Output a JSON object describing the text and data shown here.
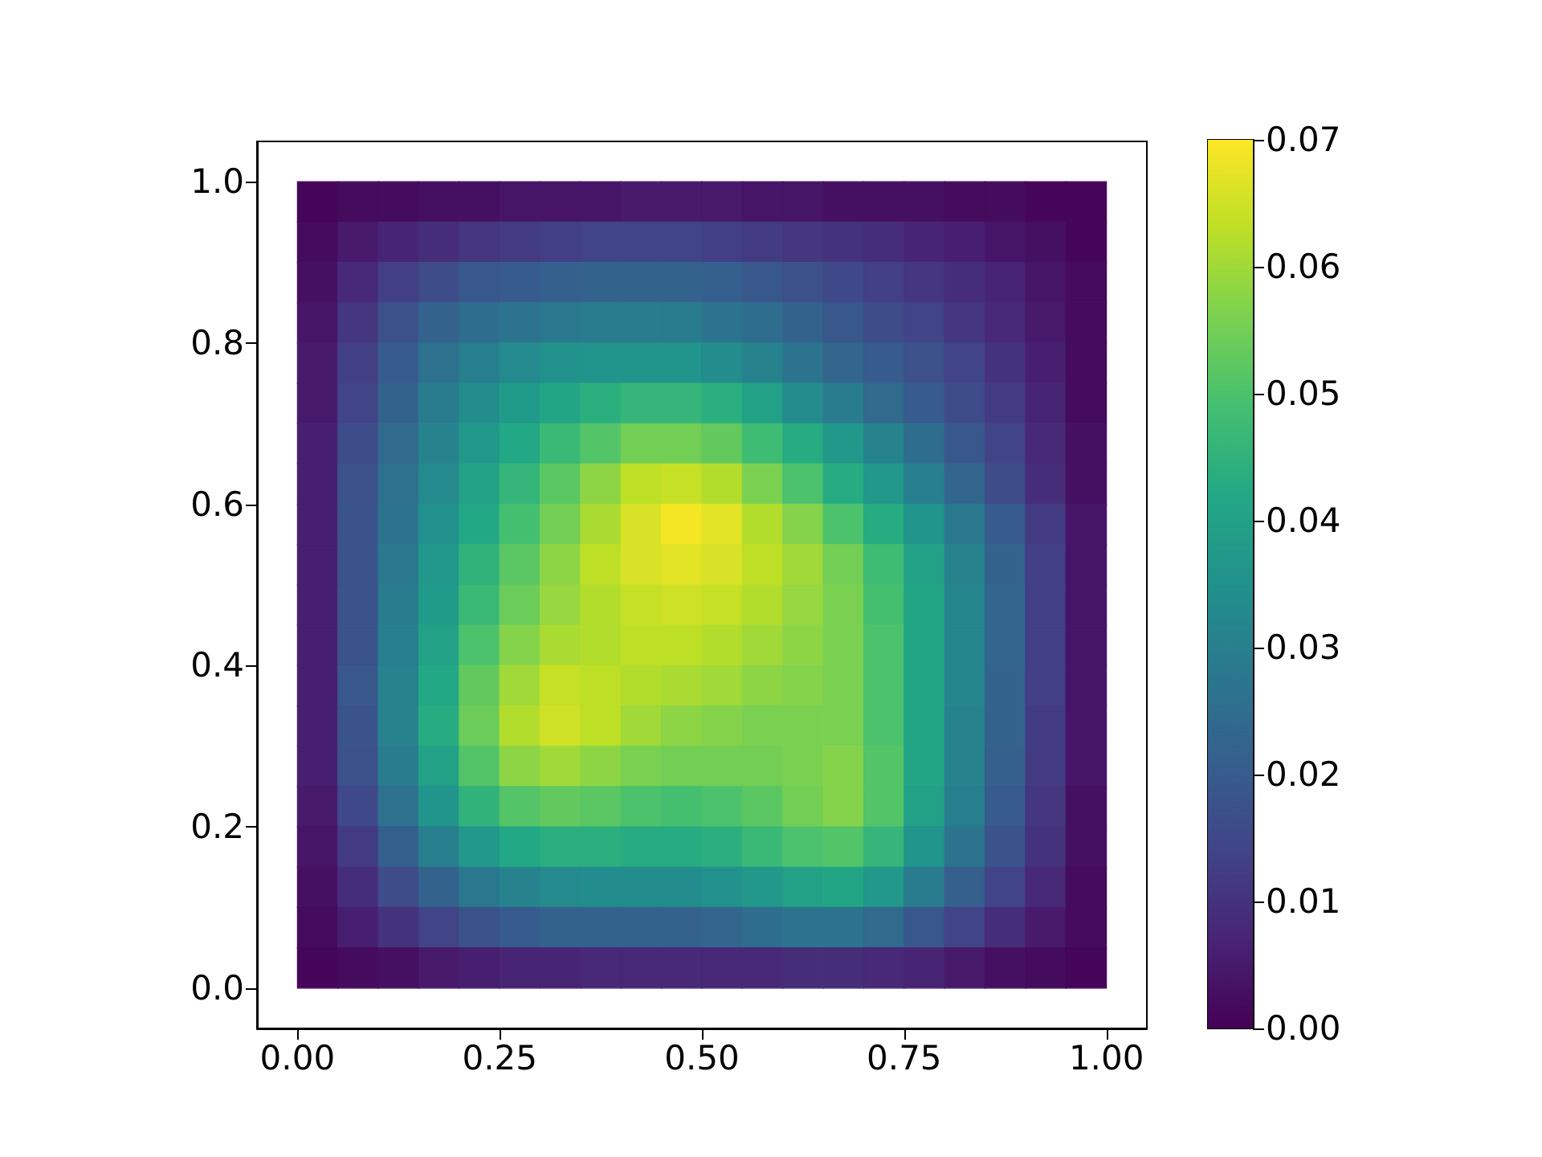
{
  "chart_data": {
    "type": "heatmap",
    "x": [
      0.025,
      0.075,
      0.125,
      0.175,
      0.225,
      0.275,
      0.325,
      0.375,
      0.425,
      0.475,
      0.525,
      0.575,
      0.625,
      0.675,
      0.725,
      0.775,
      0.825,
      0.875,
      0.925,
      0.975
    ],
    "y": [
      0.975,
      0.925,
      0.875,
      0.825,
      0.775,
      0.725,
      0.675,
      0.625,
      0.575,
      0.525,
      0.475,
      0.425,
      0.375,
      0.325,
      0.275,
      0.225,
      0.175,
      0.125,
      0.075,
      0.025
    ],
    "cells": [
      [
        0.001,
        0.002,
        0.002,
        0.003,
        0.003,
        0.004,
        0.004,
        0.004,
        0.005,
        0.005,
        0.005,
        0.004,
        0.004,
        0.003,
        0.003,
        0.003,
        0.002,
        0.002,
        0.001,
        0.001
      ],
      [
        0.002,
        0.005,
        0.007,
        0.009,
        0.011,
        0.012,
        0.013,
        0.014,
        0.014,
        0.014,
        0.013,
        0.012,
        0.011,
        0.01,
        0.009,
        0.007,
        0.006,
        0.004,
        0.003,
        0.001
      ],
      [
        0.003,
        0.008,
        0.013,
        0.016,
        0.019,
        0.02,
        0.021,
        0.022,
        0.022,
        0.022,
        0.021,
        0.019,
        0.017,
        0.015,
        0.013,
        0.011,
        0.009,
        0.007,
        0.004,
        0.002
      ],
      [
        0.004,
        0.011,
        0.017,
        0.022,
        0.025,
        0.027,
        0.028,
        0.029,
        0.029,
        0.029,
        0.027,
        0.025,
        0.022,
        0.019,
        0.016,
        0.014,
        0.011,
        0.008,
        0.005,
        0.002
      ],
      [
        0.005,
        0.013,
        0.02,
        0.026,
        0.03,
        0.033,
        0.035,
        0.036,
        0.036,
        0.036,
        0.034,
        0.031,
        0.027,
        0.023,
        0.02,
        0.017,
        0.014,
        0.01,
        0.006,
        0.002
      ],
      [
        0.005,
        0.014,
        0.022,
        0.029,
        0.034,
        0.038,
        0.041,
        0.044,
        0.046,
        0.046,
        0.044,
        0.04,
        0.034,
        0.029,
        0.024,
        0.02,
        0.016,
        0.012,
        0.007,
        0.002
      ],
      [
        0.006,
        0.016,
        0.024,
        0.031,
        0.037,
        0.042,
        0.047,
        0.051,
        0.055,
        0.055,
        0.053,
        0.048,
        0.043,
        0.037,
        0.031,
        0.025,
        0.019,
        0.014,
        0.008,
        0.003
      ],
      [
        0.006,
        0.017,
        0.026,
        0.033,
        0.04,
        0.046,
        0.052,
        0.058,
        0.063,
        0.064,
        0.062,
        0.056,
        0.05,
        0.043,
        0.037,
        0.03,
        0.023,
        0.016,
        0.009,
        0.003
      ],
      [
        0.006,
        0.018,
        0.027,
        0.035,
        0.042,
        0.049,
        0.055,
        0.061,
        0.066,
        0.069,
        0.067,
        0.062,
        0.057,
        0.05,
        0.043,
        0.036,
        0.028,
        0.02,
        0.012,
        0.004
      ],
      [
        0.006,
        0.018,
        0.028,
        0.037,
        0.045,
        0.052,
        0.058,
        0.063,
        0.066,
        0.067,
        0.066,
        0.063,
        0.06,
        0.055,
        0.048,
        0.04,
        0.031,
        0.022,
        0.013,
        0.004
      ],
      [
        0.006,
        0.018,
        0.029,
        0.038,
        0.047,
        0.054,
        0.059,
        0.062,
        0.064,
        0.065,
        0.064,
        0.062,
        0.059,
        0.056,
        0.049,
        0.041,
        0.032,
        0.023,
        0.013,
        0.004
      ],
      [
        0.006,
        0.018,
        0.03,
        0.04,
        0.05,
        0.057,
        0.061,
        0.062,
        0.063,
        0.063,
        0.062,
        0.06,
        0.058,
        0.056,
        0.05,
        0.041,
        0.032,
        0.023,
        0.013,
        0.004
      ],
      [
        0.006,
        0.019,
        0.031,
        0.042,
        0.053,
        0.06,
        0.064,
        0.063,
        0.062,
        0.061,
        0.06,
        0.058,
        0.057,
        0.056,
        0.05,
        0.041,
        0.032,
        0.022,
        0.013,
        0.004
      ],
      [
        0.006,
        0.018,
        0.031,
        0.043,
        0.054,
        0.062,
        0.065,
        0.063,
        0.06,
        0.058,
        0.057,
        0.056,
        0.056,
        0.056,
        0.05,
        0.041,
        0.031,
        0.022,
        0.012,
        0.004
      ],
      [
        0.006,
        0.017,
        0.029,
        0.04,
        0.051,
        0.058,
        0.06,
        0.058,
        0.056,
        0.055,
        0.055,
        0.055,
        0.056,
        0.057,
        0.051,
        0.041,
        0.031,
        0.021,
        0.012,
        0.004
      ],
      [
        0.005,
        0.015,
        0.026,
        0.036,
        0.045,
        0.051,
        0.053,
        0.052,
        0.05,
        0.049,
        0.05,
        0.052,
        0.055,
        0.057,
        0.051,
        0.04,
        0.03,
        0.02,
        0.011,
        0.003
      ],
      [
        0.004,
        0.012,
        0.021,
        0.03,
        0.037,
        0.042,
        0.044,
        0.044,
        0.043,
        0.043,
        0.044,
        0.047,
        0.05,
        0.051,
        0.046,
        0.036,
        0.027,
        0.018,
        0.01,
        0.003
      ],
      [
        0.003,
        0.009,
        0.016,
        0.022,
        0.028,
        0.031,
        0.033,
        0.034,
        0.034,
        0.034,
        0.035,
        0.037,
        0.04,
        0.041,
        0.037,
        0.029,
        0.021,
        0.014,
        0.008,
        0.002
      ],
      [
        0.002,
        0.006,
        0.01,
        0.014,
        0.018,
        0.02,
        0.022,
        0.022,
        0.022,
        0.022,
        0.023,
        0.025,
        0.027,
        0.027,
        0.024,
        0.019,
        0.014,
        0.009,
        0.005,
        0.002
      ],
      [
        0.001,
        0.002,
        0.003,
        0.005,
        0.006,
        0.007,
        0.007,
        0.008,
        0.008,
        0.008,
        0.008,
        0.008,
        0.009,
        0.009,
        0.008,
        0.007,
        0.005,
        0.003,
        0.002,
        0.001
      ]
    ],
    "xlim": [
      -0.05,
      1.05
    ],
    "ylim": [
      -0.05,
      1.05
    ],
    "xticks": [
      {
        "value": 0,
        "label": "0.00"
      },
      0.25,
      {
        "value": 0.5,
        "label": "0.50"
      },
      0.75,
      {
        "value": 1,
        "label": "1.00"
      }
    ],
    "yticks": [
      {
        "value": 0,
        "label": "0.0"
      },
      0.2,
      0.4,
      0.6,
      0.8,
      {
        "value": 1,
        "label": "1.0"
      }
    ],
    "clim": [
      0,
      0.07
    ],
    "cticks": [
      {
        "value": 0,
        "label": "0.00"
      },
      0.01,
      0.02,
      0.03,
      0.04,
      0.05,
      0.06,
      0.07
    ]
  }
}
